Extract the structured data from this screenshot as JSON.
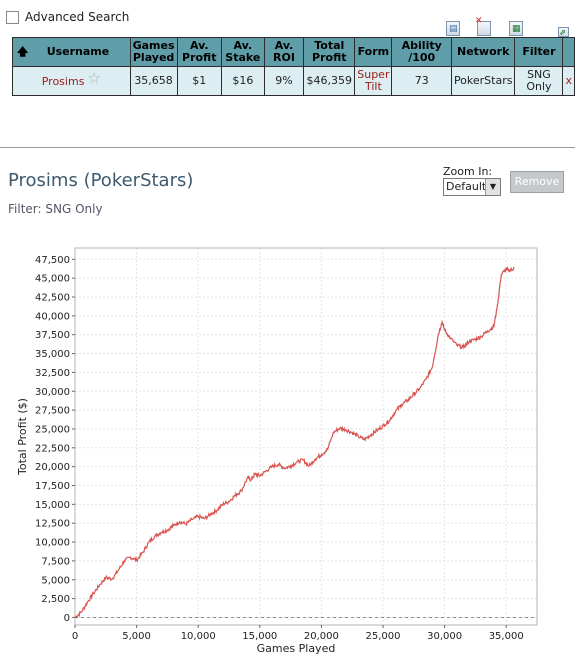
{
  "advanced_search": {
    "label": "Advanced Search",
    "checked": false
  },
  "toolbar": {
    "icons": [
      "export-icon",
      "delete-icon",
      "excel-icon",
      "popout-icon"
    ]
  },
  "table": {
    "headers": [
      "Username",
      "Games Played",
      "Av. Profit",
      "Av. Stake",
      "Av. ROI",
      "Total Profit",
      "Form",
      "Ability /100",
      "Network",
      "Filter"
    ],
    "row": {
      "username": "Prosims",
      "games_played": "35,658",
      "av_profit": "$1",
      "av_stake": "$16",
      "av_roi": "9%",
      "total_profit": "$46,359",
      "form": "Super Tilt",
      "ability": "73",
      "network": "PokerStars",
      "filter": "SNG Only",
      "remove_mark": "x"
    }
  },
  "player": {
    "title": "Prosims (PokerStars)",
    "filter": "Filter: SNG Only"
  },
  "zoom": {
    "label": "Zoom In:",
    "selected": "Default",
    "remove_label": "Remove"
  },
  "chart_data": {
    "type": "line",
    "xlabel": "Games Played",
    "ylabel": "Total Profit ($)",
    "xlim": [
      0,
      37500
    ],
    "ylim": [
      -1000,
      49000
    ],
    "x_ticks": [
      0,
      5000,
      10000,
      15000,
      20000,
      25000,
      30000,
      35000
    ],
    "x_tick_labels": [
      "0",
      "5,000",
      "10,000",
      "15,000",
      "20,000",
      "25,000",
      "30,000",
      "35,000"
    ],
    "y_ticks": [
      0,
      2500,
      5000,
      7500,
      10000,
      12500,
      15000,
      17500,
      20000,
      22500,
      25000,
      27500,
      30000,
      32500,
      35000,
      37500,
      40000,
      42500,
      45000,
      47500
    ],
    "y_tick_labels": [
      "0",
      "2,500",
      "5,000",
      "7,500",
      "10,000",
      "12,500",
      "15,000",
      "17,500",
      "20,000",
      "22,500",
      "25,000",
      "27,500",
      "30,000",
      "32,500",
      "35,000",
      "37,500",
      "40,000",
      "42,500",
      "45,000",
      "47,500"
    ],
    "grid": true,
    "line_color": "#d9534f",
    "series": [
      {
        "x": [
          0,
          500,
          1000,
          1500,
          2000,
          2500,
          3000,
          3500,
          4000,
          4500,
          5000,
          5500,
          6000,
          6500,
          7000,
          7500,
          8000,
          8500,
          9000,
          9500,
          10000,
          10500,
          11000,
          11500,
          12000,
          12500,
          13000,
          13500,
          14000,
          14300,
          14600,
          15000,
          15500,
          16000,
          16500,
          17000,
          17500,
          18000,
          18500,
          19000,
          19500,
          20000,
          20500,
          21000,
          21500,
          22000,
          22500,
          23000,
          23500,
          24000,
          24500,
          25000,
          25500,
          26000,
          26500,
          27000,
          27500,
          28000,
          28500,
          29000,
          29500,
          29800,
          30000,
          30500,
          31000,
          31500,
          32000,
          32500,
          33000,
          33500,
          34000,
          34300,
          34600,
          35000,
          35300,
          35658
        ],
        "y": [
          0,
          700,
          2000,
          3200,
          4300,
          5300,
          5100,
          6200,
          7500,
          8000,
          7600,
          8600,
          10000,
          10800,
          11300,
          11600,
          12200,
          12700,
          12400,
          13000,
          13400,
          13100,
          13700,
          14200,
          15000,
          15400,
          16200,
          16800,
          18500,
          18300,
          19000,
          18800,
          19400,
          20000,
          20300,
          19800,
          20100,
          20600,
          20900,
          20100,
          21000,
          21600,
          22300,
          24600,
          25100,
          24900,
          24500,
          24000,
          23600,
          24200,
          24800,
          25400,
          26100,
          27300,
          28200,
          28800,
          29600,
          30400,
          31600,
          33200,
          37600,
          39200,
          38100,
          37000,
          36100,
          35800,
          36600,
          36900,
          37300,
          38000,
          38600,
          41500,
          45500,
          46200,
          46000,
          46359
        ]
      }
    ]
  }
}
